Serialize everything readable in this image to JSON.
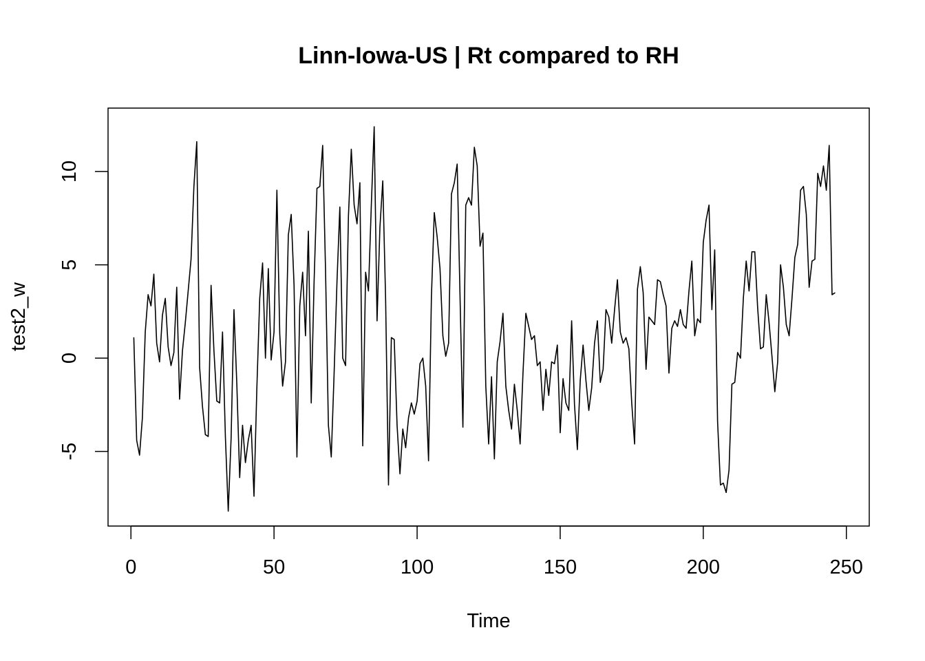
{
  "chart_data": {
    "type": "line",
    "title": "Linn-Iowa-US | Rt compared to RH",
    "xlabel": "Time",
    "ylabel": "test2_w",
    "xlim": [
      -8,
      258
    ],
    "ylim": [
      -9,
      13.4
    ],
    "x_ticks": [
      0,
      50,
      100,
      150,
      200,
      250
    ],
    "y_ticks": [
      -5,
      0,
      5,
      10
    ],
    "x_tick_labels": [
      "0",
      "50",
      "100",
      "150",
      "200",
      "250"
    ],
    "y_tick_labels": [
      "-5",
      "0",
      "5",
      "10"
    ],
    "grid": false,
    "legend": "none",
    "line_color": "#000000",
    "series": [
      {
        "x_start": 1,
        "values": [
          1.1,
          -4.4,
          -5.2,
          -3.2,
          1.4,
          3.4,
          2.8,
          4.5,
          0.8,
          -0.2,
          2.3,
          3.2,
          0.6,
          -0.4,
          0.3,
          3.8,
          -2.2,
          0.4,
          1.9,
          3.6,
          5.3,
          9.2,
          11.6,
          -0.5,
          -2.6,
          -4.1,
          -4.2,
          3.9,
          0.4,
          -2.3,
          -2.4,
          1.4,
          -4.2,
          -8.2,
          -4.3,
          2.6,
          -1.4,
          -6.4,
          -3.6,
          -5.6,
          -4.4,
          -3.6,
          -7.4,
          -1.6,
          3.2,
          5.1,
          0.0,
          4.8,
          -0.1,
          1.4,
          9.0,
          1.3,
          -1.5,
          -0.2,
          6.6,
          7.7,
          3.9,
          -5.3,
          2.8,
          4.6,
          1.2,
          6.8,
          -2.4,
          4.1,
          9.1,
          9.2,
          11.4,
          4.7,
          -3.6,
          -5.3,
          -0.8,
          4.1,
          8.1,
          0.0,
          -0.4,
          7.6,
          11.2,
          8.2,
          7.2,
          9.4,
          -4.7,
          4.6,
          3.6,
          8.2,
          12.4,
          2.0,
          7.0,
          9.5,
          3.1,
          -6.8,
          1.1,
          1.0,
          -3.6,
          -6.2,
          -3.8,
          -4.8,
          -3.2,
          -2.4,
          -3.0,
          -2.3,
          -0.3,
          0.0,
          -1.5,
          -5.5,
          3.3,
          7.8,
          6.5,
          4.8,
          1.2,
          0.1,
          0.8,
          8.8,
          9.4,
          10.4,
          3.3,
          -3.7,
          8.2,
          8.6,
          8.2,
          11.3,
          10.3,
          6.0,
          6.7,
          -1.5,
          -4.6,
          -1.0,
          -5.4,
          -0.2,
          0.9,
          2.4,
          -1.5,
          -2.8,
          -3.8,
          -1.4,
          -2.8,
          -4.6,
          -0.8,
          2.4,
          1.7,
          1.0,
          1.2,
          -0.4,
          -0.2,
          -2.8,
          -0.6,
          -2.0,
          -0.2,
          -0.3,
          0.7,
          -4.0,
          -1.1,
          -2.4,
          -2.8,
          2.0,
          -2.5,
          -4.9,
          -1.2,
          0.7,
          -1.2,
          -2.8,
          -1.6,
          0.8,
          2.0,
          -1.3,
          -0.6,
          2.6,
          2.2,
          0.8,
          2.6,
          4.2,
          1.4,
          0.8,
          1.1,
          0.5,
          -2.4,
          -4.6,
          3.7,
          4.9,
          3.5,
          -0.6,
          2.2,
          2.0,
          1.8,
          4.2,
          4.1,
          3.4,
          2.8,
          -0.8,
          1.6,
          2.0,
          1.7,
          2.6,
          1.8,
          1.6,
          3.6,
          5.2,
          1.2,
          2.1,
          1.9,
          6.2,
          7.4,
          8.2,
          2.6,
          5.8,
          -3.4,
          -6.8,
          -6.7,
          -7.2,
          -6.0,
          -1.4,
          -1.3,
          0.3,
          0.0,
          3.2,
          5.2,
          3.6,
          5.7,
          5.7,
          2.7,
          0.5,
          0.6,
          3.4,
          1.9,
          0.1,
          -1.8,
          -0.2,
          5.0,
          3.8,
          1.8,
          1.2,
          3.2,
          5.4,
          6.1,
          9.0,
          9.2,
          7.7,
          3.8,
          5.2,
          5.3,
          9.9,
          9.2,
          10.3,
          9.0,
          11.4,
          3.4,
          3.5
        ]
      }
    ]
  }
}
